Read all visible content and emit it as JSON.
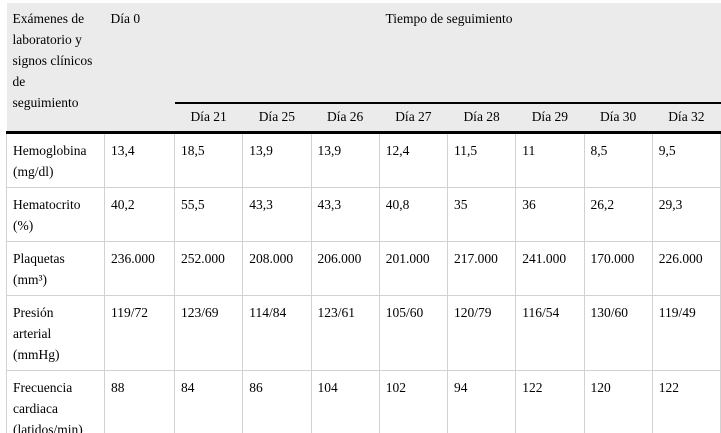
{
  "table": {
    "corner_header": "Exámenes de\nlaboratorio y\nsignos clínicos\nde\nseguimiento",
    "day0_header": "Día 0",
    "span_header": "Tiempo de seguimiento",
    "day_headers": [
      "Día 21",
      "Día 25",
      "Día 26",
      "Día 27",
      "Día 28",
      "Día 29",
      "Día 30",
      "Día 32"
    ],
    "rows": [
      {
        "label": "Hemoglobina\n(mg/dl)",
        "day0": "13,4",
        "values": [
          "18,5",
          "13,9",
          "13,9",
          "12,4",
          "11,5",
          "11",
          "8,5",
          "9,5"
        ]
      },
      {
        "label": "Hematocrito\n(%)",
        "day0": "40,2",
        "values": [
          "55,5",
          "43,3",
          "43,3",
          "40,8",
          "35",
          "36",
          "26,2",
          "29,3"
        ]
      },
      {
        "label": "Plaquetas\n(mm³)",
        "day0": "236.000",
        "values": [
          "252.000",
          "208.000",
          "206.000",
          "201.000",
          "217.000",
          "241.000",
          "170.000",
          "226.000"
        ]
      },
      {
        "label": "Presión\narterial\n(mmHg)",
        "day0": "119/72",
        "values": [
          "123/69",
          "114/84",
          "123/61",
          "105/60",
          "120/79",
          "116/54",
          "130/60",
          "119/49"
        ]
      },
      {
        "label": "Frecuencia\ncardiaca\n(latidos/min)",
        "day0": "88",
        "values": [
          "84",
          "86",
          "104",
          "102",
          "94",
          "122",
          "120",
          "122"
        ]
      }
    ],
    "colors": {
      "header_bg": "#ebebeb",
      "cell_border": "#d2d2d2",
      "rule": "#000000"
    }
  }
}
